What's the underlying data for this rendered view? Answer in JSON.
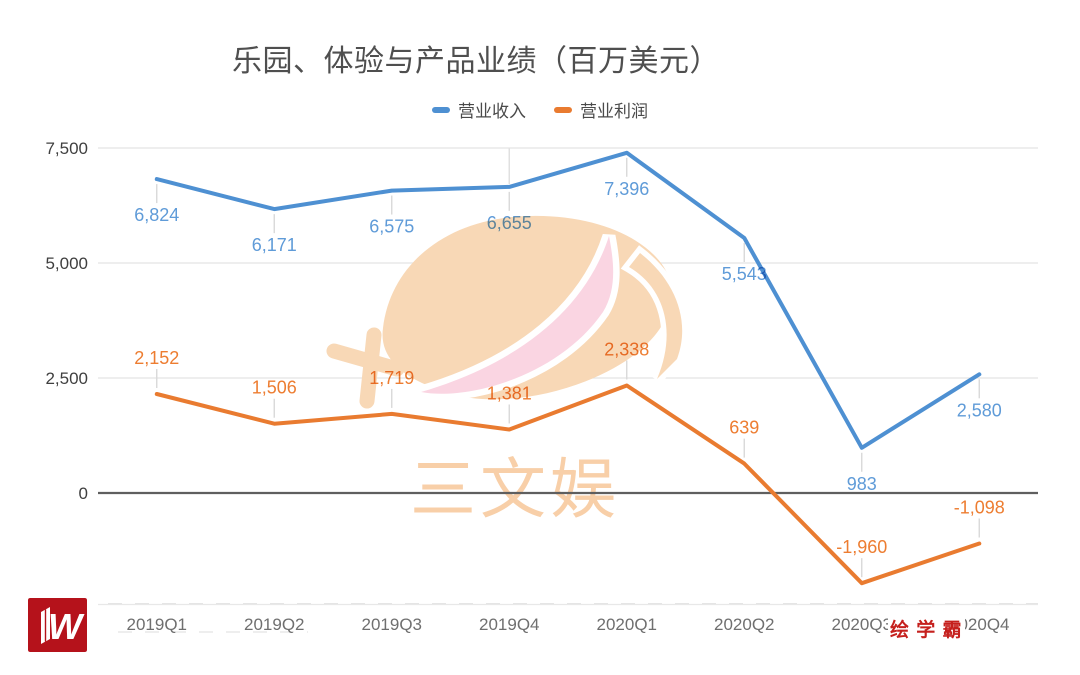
{
  "title": "乐园、体验与产品业绩（百万美元）",
  "legend": {
    "items": [
      {
        "label": "营业收入",
        "color": "#4e90d2"
      },
      {
        "label": "营业利润",
        "color": "#e97b30"
      }
    ]
  },
  "chart_data": {
    "type": "line",
    "title": "乐园、体验与产品业绩（百万美元）",
    "unit": "百万美元",
    "categories": [
      "2019Q1",
      "2019Q2",
      "2019Q3",
      "2019Q4",
      "2020Q1",
      "2020Q2",
      "2020Q3",
      "2020Q4"
    ],
    "series": [
      {
        "name": "营业收入",
        "color": "#4e90d2",
        "label_color": "#5f9bd8",
        "values": [
          6824,
          6171,
          6575,
          6655,
          7396,
          5543,
          983,
          2580
        ],
        "value_labels": [
          "6,824",
          "6,171",
          "6,575",
          "6,655",
          "7,396",
          "5,543",
          "983",
          "2,580"
        ]
      },
      {
        "name": "营业利润",
        "color": "#e97b30",
        "label_color": "#ed7d31",
        "values": [
          2152,
          1506,
          1719,
          1381,
          2338,
          639,
          -1960,
          -1098
        ],
        "value_labels": [
          "2,152",
          "1,506",
          "1,719",
          "1,381",
          "2,338",
          "639",
          "-1,960",
          "-1,098"
        ]
      }
    ],
    "y_axis": {
      "ticks": [
        0,
        2500,
        5000,
        7500
      ],
      "tick_labels": [
        "0",
        "2,500",
        "5,000",
        "7,500"
      ],
      "range_shown": [
        -2400,
        7700
      ]
    },
    "grid": true,
    "legend_position": "top"
  },
  "watermark": {
    "center_text": "三文娱",
    "badge_text": "绘 学 霸",
    "logo_letter": "W",
    "colors": {
      "peach": "#f8d8b6",
      "pink": "#fad5e2",
      "text": "#f8cfa8",
      "logo_red": "#b5121b",
      "badge_red": "#c5201d"
    }
  },
  "colors": {
    "grid": "#e4e4e4",
    "zero_line": "#5f5f5f",
    "bottom_axis": "#e8e8e8",
    "title_text": "#4f4f4f",
    "y_label": "#3f3f3f",
    "x_label": "#6f6f6f",
    "leader": "#d9d9d9",
    "background": "#ffffff"
  }
}
